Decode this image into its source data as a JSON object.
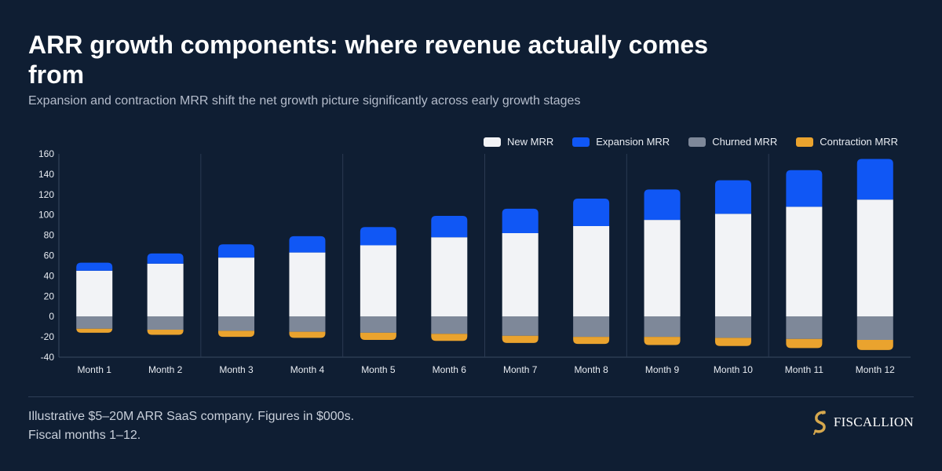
{
  "header": {
    "title": "ARR growth components: where revenue actually comes from",
    "subtitle": "Expansion and contraction MRR shift the net growth picture significantly across early growth stages"
  },
  "footer": {
    "note": "Illustrative $5–20M ARR SaaS company. Figures in $000s. Fiscal months 1–12.",
    "brand": "FISCALLION",
    "brand_icon": "stylized-s-logo-icon"
  },
  "colors": {
    "background": "#0f1e33",
    "new_mrr": "#f2f3f6",
    "expansion_mrr": "#1057f5",
    "churned_mrr": "#7e8899",
    "contraction_mrr": "#eaa32e",
    "brand_gold": "#d6a84e"
  },
  "chart_data": {
    "type": "bar",
    "stacked": true,
    "categories": [
      "Month 1",
      "Month 2",
      "Month 3",
      "Month 4",
      "Month 5",
      "Month 6",
      "Month 7",
      "Month 8",
      "Month 9",
      "Month 10",
      "Month 11",
      "Month 12"
    ],
    "series": [
      {
        "name": "New MRR",
        "values": [
          45,
          52,
          58,
          63,
          70,
          78,
          82,
          89,
          95,
          101,
          108,
          115
        ]
      },
      {
        "name": "Expansion MRR",
        "values": [
          8,
          10,
          13,
          16,
          18,
          21,
          24,
          27,
          30,
          33,
          36,
          40
        ]
      },
      {
        "name": "Churned MRR",
        "values": [
          -12,
          -13,
          -14,
          -15,
          -16,
          -17,
          -19,
          -20,
          -20,
          -21,
          -22,
          -23
        ]
      },
      {
        "name": "Contraction MRR",
        "values": [
          -4,
          -5,
          -6,
          -6,
          -7,
          -7,
          -7,
          -7,
          -8,
          -8,
          -9,
          -10
        ]
      }
    ],
    "ylim": [
      -40,
      160
    ],
    "yticks": [
      -40,
      -20,
      0,
      20,
      40,
      60,
      80,
      100,
      120,
      140,
      160
    ],
    "legend_position": "top-right",
    "grid": false,
    "quarter_separators": true
  }
}
